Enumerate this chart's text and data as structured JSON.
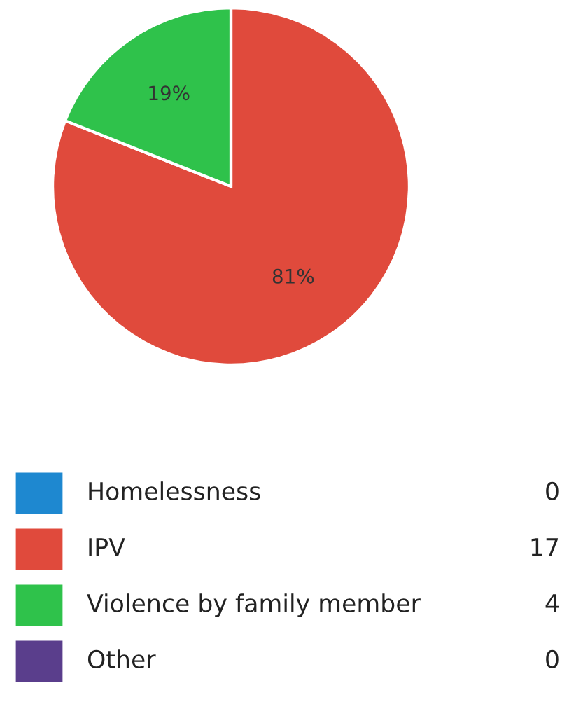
{
  "chart_data": {
    "type": "pie",
    "categories": [
      "Homelessness",
      "IPV",
      "Violence by family member",
      "Other"
    ],
    "values": [
      0,
      81,
      19,
      0
    ],
    "annotations": [
      "0",
      "17",
      "4",
      "0"
    ],
    "colors": [
      "#1e88d0",
      "#e04a3c",
      "#2fc24b",
      "#5a3e8c"
    ],
    "value_labels": [
      null,
      "81%",
      "19%",
      null
    ],
    "legend": "bottom"
  }
}
